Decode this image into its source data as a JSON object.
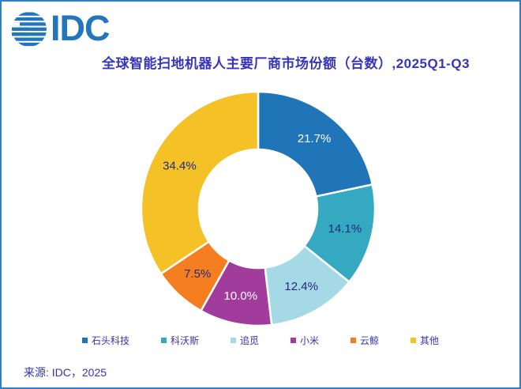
{
  "brand": {
    "logo_text": "IDC",
    "logo_color": "#2176BC"
  },
  "title": {
    "text": "全球智能扫地机器人主要厂商市场份额（台数）,2025Q1-Q3",
    "color": "#3734B8"
  },
  "source": {
    "text": "来源: IDC，2025"
  },
  "colors": {
    "card_border": "#2F80C3",
    "slice_gap": "#FFFFFF",
    "label_navy": "#232A7C",
    "label_white": "#FFFFFF",
    "legend_text": "#3636AC"
  },
  "chart_data": {
    "type": "pie",
    "subtype": "donut",
    "title": "全球智能扫地机器人主要厂商市场份额（台数）,2025Q1-Q3",
    "unit": "%",
    "start_angle_deg": -90,
    "direction": "clockwise",
    "center": {
      "x": 325,
      "y": 262
    },
    "outer_radius": 148,
    "inner_radius": 75,
    "label_radius": 113,
    "legend_position": "bottom",
    "series": [
      {
        "name": "石头科技",
        "value": 21.7,
        "label": "21.7%",
        "color": "#2075B8",
        "label_color": "#FFFFFF"
      },
      {
        "name": "科沃斯",
        "value": 14.1,
        "label": "14.1%",
        "color": "#35A9C2",
        "label_color": "#232A7C"
      },
      {
        "name": "追觅",
        "value": 12.4,
        "label": "12.4%",
        "color": "#A6D9E6",
        "label_color": "#232A7C"
      },
      {
        "name": "小米",
        "value": 10.0,
        "label": "10.0%",
        "color": "#A23C9C",
        "label_color": "#FFFFFF"
      },
      {
        "name": "云鲸",
        "value": 7.5,
        "label": "7.5%",
        "color": "#F47E20",
        "label_color": "#232A7C"
      },
      {
        "name": "其他",
        "value": 34.4,
        "label": "34.4%",
        "color": "#F4C127",
        "label_color": "#232A7C"
      }
    ]
  }
}
